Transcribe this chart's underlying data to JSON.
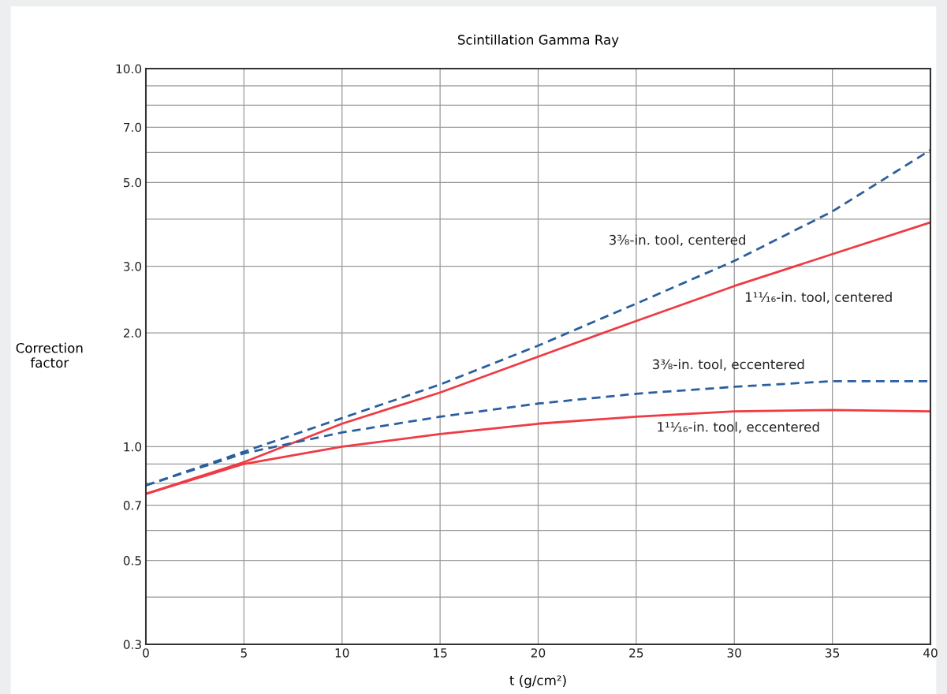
{
  "chart_data": {
    "type": "line",
    "title": "Scintillation Gamma Ray",
    "xlabel": "t (g/cm²)",
    "ylabel": "Correction\nfactor",
    "x": [
      0,
      5,
      10,
      15,
      20,
      25,
      30,
      35,
      40
    ],
    "series": [
      {
        "name": "3⅜-in. tool, centered",
        "color": "#2a5f9e",
        "line_style": "dashed",
        "values": [
          0.79,
          0.97,
          1.19,
          1.46,
          1.85,
          2.39,
          3.1,
          4.19,
          6.09
        ]
      },
      {
        "name": "1¹¹⁄₁₆-in. tool, centered",
        "color": "#ee3b45",
        "line_style": "solid",
        "values": [
          0.75,
          0.91,
          1.15,
          1.39,
          1.73,
          2.15,
          2.66,
          3.23,
          3.92
        ]
      },
      {
        "name": "3⅜-in. tool, eccentered",
        "color": "#2a5f9e",
        "line_style": "dashed",
        "values": [
          0.79,
          0.96,
          1.09,
          1.2,
          1.3,
          1.38,
          1.44,
          1.49,
          1.49
        ]
      },
      {
        "name": "1¹¹⁄₁₆-in. tool, eccentered",
        "color": "#ee3b45",
        "line_style": "solid",
        "values": [
          0.75,
          0.9,
          1.0,
          1.08,
          1.15,
          1.2,
          1.24,
          1.25,
          1.24
        ]
      }
    ],
    "log": "y",
    "xlim": [
      0,
      40
    ],
    "ylim": [
      0.3,
      10
    ],
    "xticks": [
      0,
      5,
      10,
      15,
      20,
      25,
      30,
      35,
      40
    ],
    "yticks": [
      0.3,
      {
        "value": 0.4,
        "label": null
      },
      {
        "value": 0.5,
        "label": "0.5"
      },
      {
        "value": 0.6,
        "label": null
      },
      {
        "value": 0.7,
        "label": "0.7"
      },
      {
        "value": 0.8,
        "label": null
      },
      {
        "value": 0.9,
        "label": null
      },
      {
        "value": 1,
        "label": "1.0"
      },
      {
        "value": 2,
        "label": "2.0"
      },
      {
        "value": 3,
        "label": "3.0"
      },
      {
        "value": 4,
        "label": null
      },
      {
        "value": 5,
        "label": "5.0"
      },
      {
        "value": 6,
        "label": null
      },
      {
        "value": 7,
        "label": "7.0"
      },
      {
        "value": 8,
        "label": null
      },
      {
        "value": 9,
        "label": null
      },
      {
        "value": 10,
        "label": "10.0"
      }
    ],
    "grid": true,
    "legend": false
  }
}
